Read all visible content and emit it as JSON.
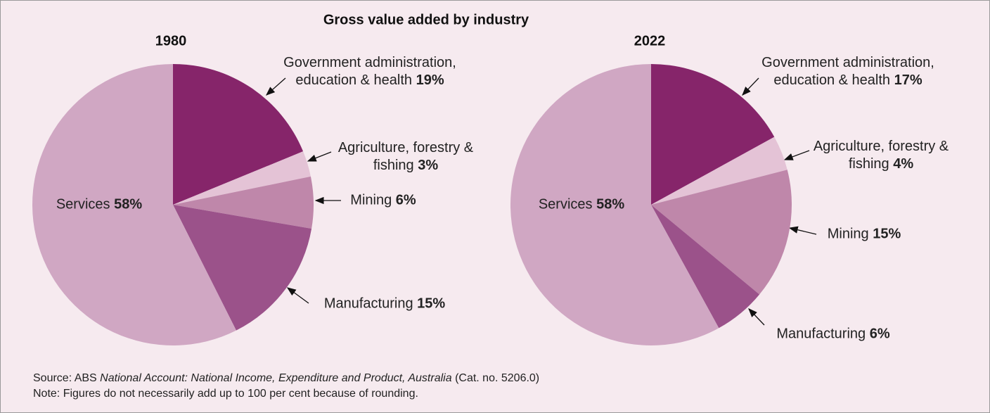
{
  "title": "Gross value added by industry",
  "source": {
    "prefix": "Source: ABS",
    "publication": "National Account: National Income, Expenditure and Product, Australia",
    "suffix": "(Cat. no. 5206.0)"
  },
  "note": "Note: Figures do not necessarily add up to 100 per cent because of rounding.",
  "chart_data": [
    {
      "type": "pie",
      "title": "1980",
      "categories": [
        "Government administration, education & health",
        "Agriculture, forestry & fishing",
        "Mining",
        "Manufacturing",
        "Services"
      ],
      "values": [
        19,
        3,
        6,
        15,
        58
      ],
      "value_labels": [
        "19%",
        "3%",
        "6%",
        "15%",
        "58%"
      ],
      "colors": [
        "#86256a",
        "#e4c3d6",
        "#bf87aa",
        "#9b528a",
        "#d0a7c3"
      ]
    },
    {
      "type": "pie",
      "title": "2022",
      "categories": [
        "Government administration, education & health",
        "Agriculture, forestry & fishing",
        "Mining",
        "Manufacturing",
        "Services"
      ],
      "values": [
        17,
        4,
        15,
        6,
        58
      ],
      "value_labels": [
        "17%",
        "4%",
        "15%",
        "6%",
        "58%"
      ],
      "colors": [
        "#86256a",
        "#e4c3d6",
        "#bf87aa",
        "#9b528a",
        "#d0a7c3"
      ]
    }
  ]
}
